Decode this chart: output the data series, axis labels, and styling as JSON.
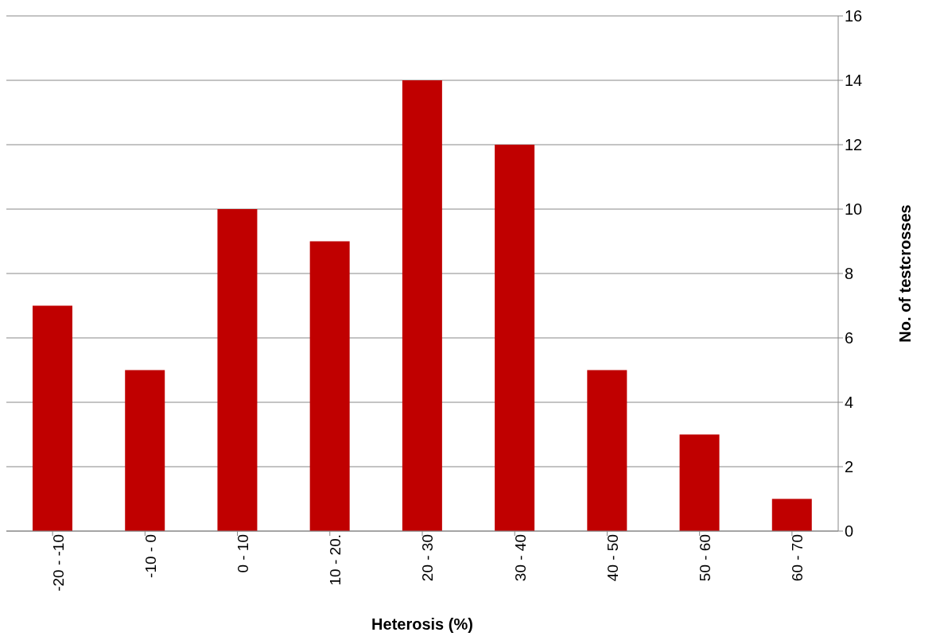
{
  "chart_data": {
    "type": "bar",
    "xlabel": "Heterosis (%)",
    "ylabel": "No. of testcrosses",
    "categories": [
      "-20 - -10",
      "-10 - 0",
      "0 - 10",
      "10 - 20.",
      "20 - 30",
      "30 - 40",
      "40 - 50",
      "50 - 60",
      "60 - 70"
    ],
    "values": [
      7,
      5,
      10,
      9,
      14,
      12,
      5,
      3,
      1
    ],
    "color": "#c00000",
    "ylim": [
      0,
      16
    ],
    "yticks": [
      0,
      2,
      4,
      6,
      8,
      10,
      12,
      14,
      16
    ],
    "grid": "y"
  }
}
